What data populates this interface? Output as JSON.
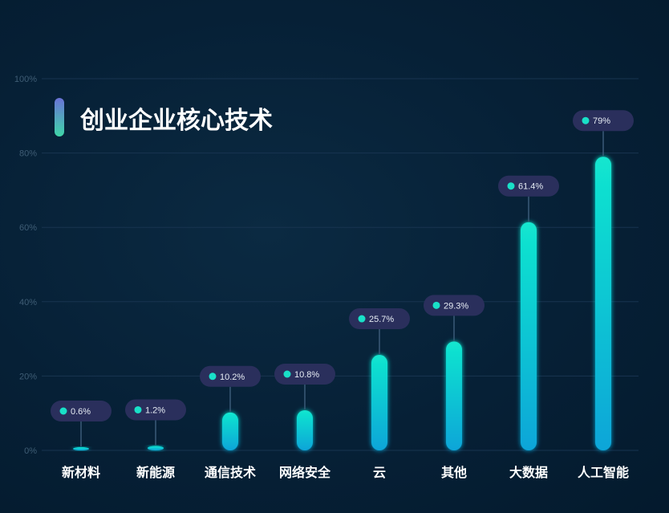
{
  "chart_data": {
    "type": "bar",
    "title": "创业企业核心技术",
    "categories": [
      "新材料",
      "新能源",
      "通信技术",
      "网络安全",
      "云",
      "其他",
      "大数据",
      "人工智能"
    ],
    "values": [
      0.6,
      1.2,
      10.2,
      10.8,
      25.7,
      29.3,
      61.4,
      79
    ],
    "value_labels": [
      "0.6%",
      "1.2%",
      "10.2%",
      "10.8%",
      "25.7%",
      "29.3%",
      "61.4%",
      "79%"
    ],
    "ylim": [
      0,
      100
    ],
    "yticks": [
      0,
      20,
      40,
      60,
      80,
      100
    ],
    "ytick_labels": [
      "0%",
      "20%",
      "40%",
      "60%",
      "80%",
      "100%"
    ],
    "xlabel": "",
    "ylabel": "",
    "grid": true,
    "colors": {
      "bar_top": "#12e6cf",
      "bar_bottom": "#08a5d8",
      "badge": "#2a2f5c",
      "dot": "#19e0c8",
      "grid": "#183450",
      "title_accent_top": "#6a72d6",
      "title_accent_bottom": "#3fd6a8"
    }
  }
}
